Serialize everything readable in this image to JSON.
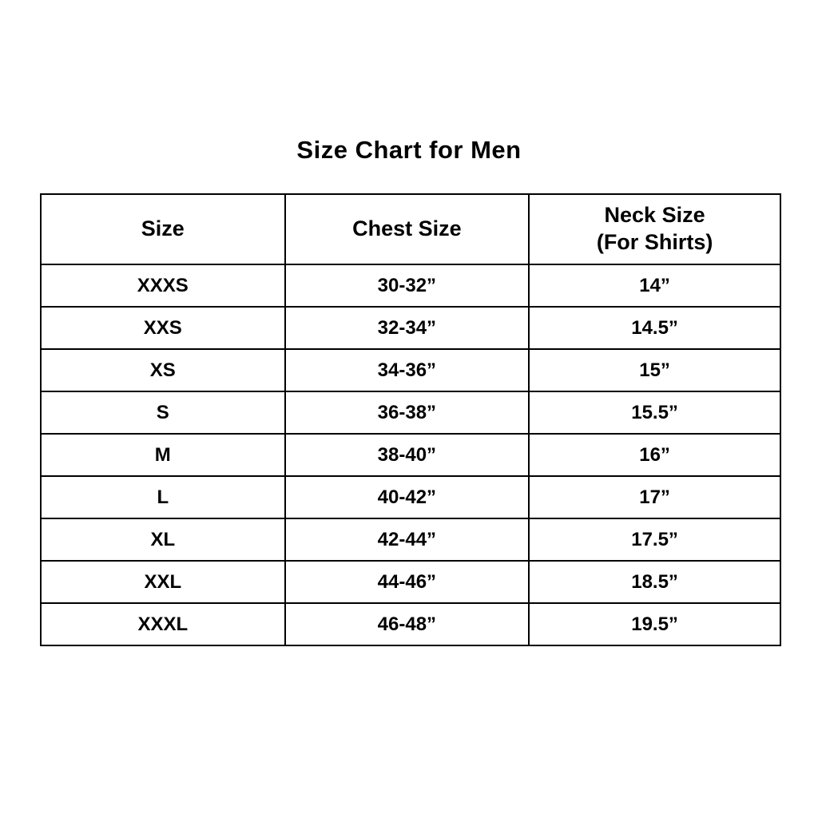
{
  "page": {
    "title": "Size Chart for Men"
  },
  "colors": {
    "background": "#ffffff",
    "border": "#000000",
    "text": "#000000"
  },
  "table": {
    "headers": {
      "size": "Size",
      "chest": "Chest Size",
      "neck_line1": "Neck Size",
      "neck_line2": "(For Shirts)"
    },
    "rows": [
      {
        "size": "XXXS",
        "chest": "30-32”",
        "neck": "14”"
      },
      {
        "size": "XXS",
        "chest": "32-34”",
        "neck": "14.5”"
      },
      {
        "size": "XS",
        "chest": "34-36”",
        "neck": "15”"
      },
      {
        "size": "S",
        "chest": "36-38”",
        "neck": "15.5”"
      },
      {
        "size": "M",
        "chest": "38-40”",
        "neck": "16”"
      },
      {
        "size": "L",
        "chest": "40-42”",
        "neck": "17”"
      },
      {
        "size": "XL",
        "chest": "42-44”",
        "neck": "17.5”"
      },
      {
        "size": "XXL",
        "chest": "44-46”",
        "neck": "18.5”"
      },
      {
        "size": "XXXL",
        "chest": "46-48”",
        "neck": "19.5”"
      }
    ]
  },
  "chart_data": {
    "type": "table",
    "title": "Size Chart for Men",
    "columns": [
      "Size",
      "Chest Size",
      "Neck Size (For Shirts)"
    ],
    "rows": [
      [
        "XXXS",
        "30-32”",
        "14”"
      ],
      [
        "XXS",
        "32-34”",
        "14.5”"
      ],
      [
        "XS",
        "34-36”",
        "15”"
      ],
      [
        "S",
        "36-38”",
        "15.5”"
      ],
      [
        "M",
        "38-40”",
        "16”"
      ],
      [
        "L",
        "40-42”",
        "17”"
      ],
      [
        "XL",
        "42-44”",
        "17.5”"
      ],
      [
        "XXL",
        "44-46”",
        "18.5”"
      ],
      [
        "XXXL",
        "46-48”",
        "19.5”"
      ]
    ],
    "layout": {
      "grid": "on",
      "header_rows": 1,
      "text_align": "center"
    }
  }
}
